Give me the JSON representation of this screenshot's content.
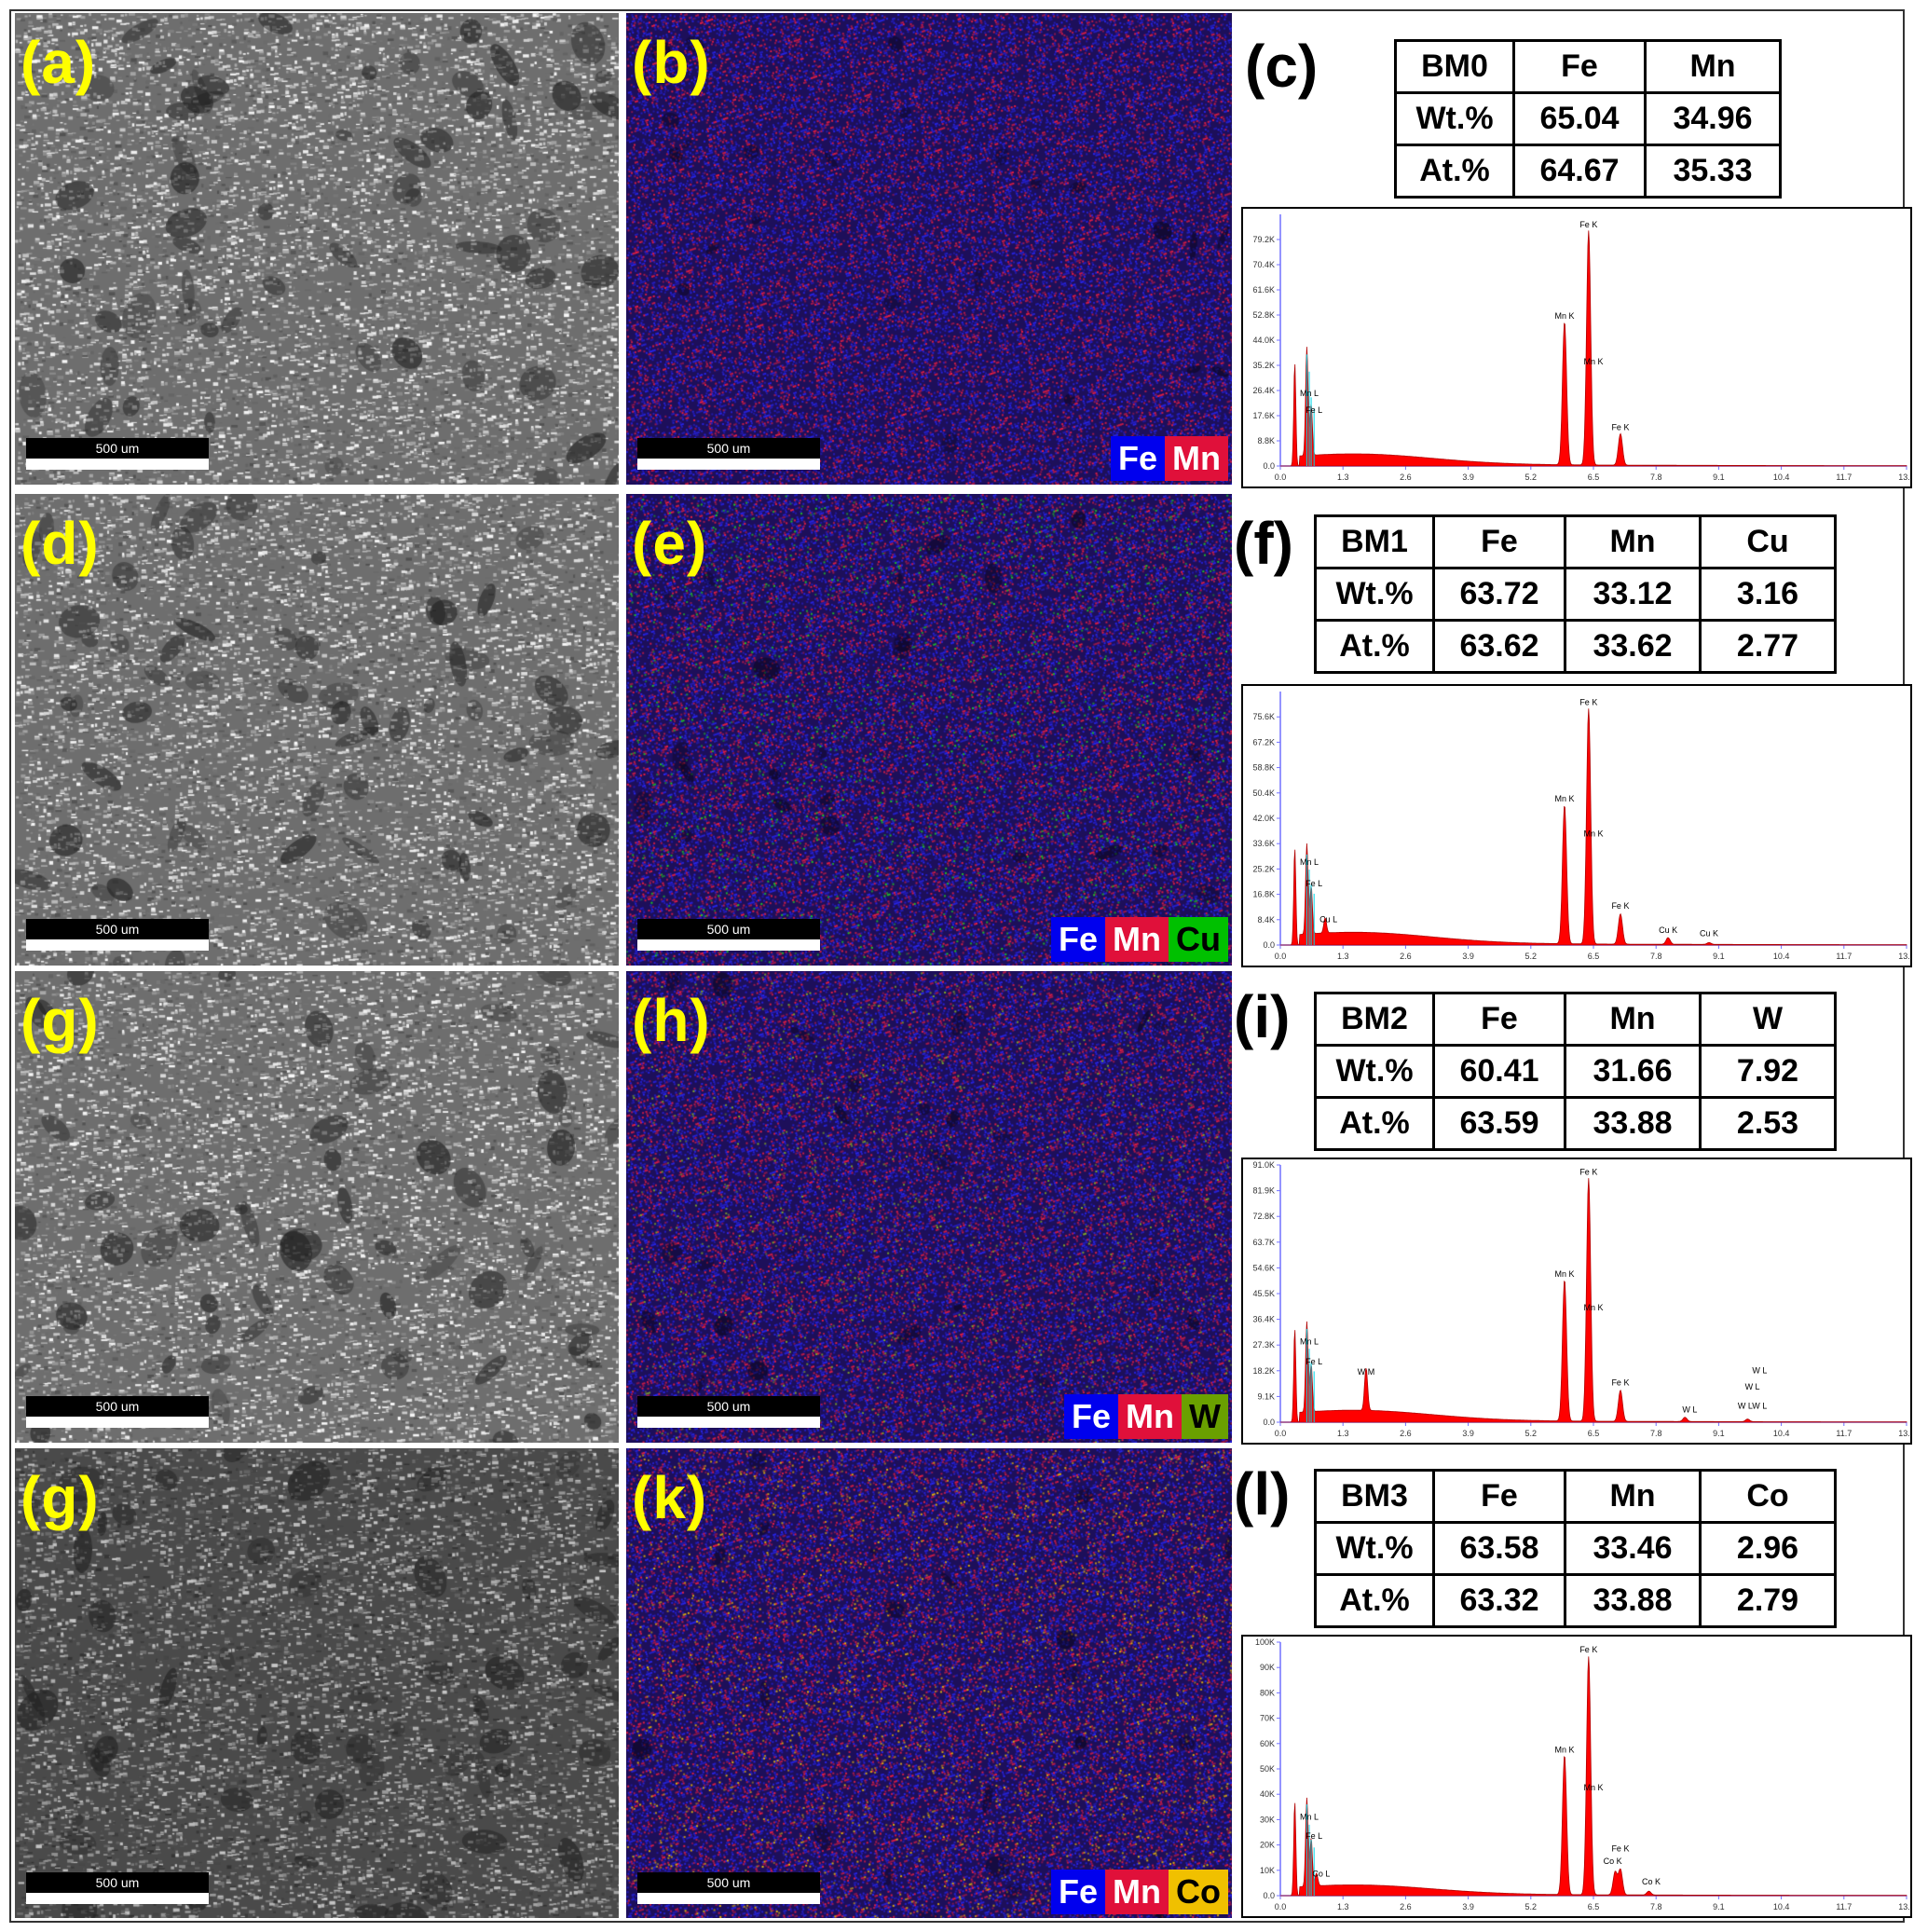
{
  "scale_bar": "500 um",
  "colors": {
    "Fe": "#0000ee",
    "Mn": "#e0103a",
    "Cu": "#00c000",
    "W": "#6aa000",
    "Co": "#f0c000",
    "label": "#ffff00",
    "peak": "#ff0000",
    "cyan": "#00d8e8"
  },
  "panels": [
    {
      "sem_label": "(a)",
      "map_label": "(b)",
      "chart_label": "(c)",
      "legend": [
        {
          "el": "Fe",
          "color": "#0000ee",
          "text": "#ffffff"
        },
        {
          "el": "Mn",
          "color": "#e0103a",
          "text": "#ffffff"
        }
      ],
      "table": {
        "header": [
          "BM0",
          "Fe",
          "Mn"
        ],
        "rows": [
          [
            "Wt.%",
            "65.04",
            "34.96"
          ],
          [
            "At.%",
            "64.67",
            "35.33"
          ]
        ]
      },
      "chart_data": {
        "type": "line",
        "xlim": [
          0,
          13.0
        ],
        "xticks": [
          "0.0",
          "1.3",
          "2.6",
          "3.9",
          "5.2",
          "6.5",
          "7.8",
          "9.1",
          "10.4",
          "11.7",
          "13.0"
        ],
        "ylim": [
          0,
          88000
        ],
        "yticks": [
          "0.0",
          "8.8K",
          "17.6K",
          "26.4K",
          "35.2K",
          "44.0K",
          "52.8K",
          "61.6K",
          "70.4K",
          "79.2K"
        ],
        "ytick_values": [
          0,
          8800,
          17600,
          26400,
          35200,
          44000,
          52800,
          61600,
          70400,
          79200
        ],
        "peaks": [
          {
            "x": 0.3,
            "y": 36000,
            "w": 0.03
          },
          {
            "x": 0.55,
            "y": 38000,
            "w": 0.035
          },
          {
            "x": 0.64,
            "y": 18000,
            "w": 0.035
          },
          {
            "x": 5.9,
            "y": 50000,
            "w": 0.06
          },
          {
            "x": 6.4,
            "y": 82000,
            "w": 0.06
          },
          {
            "x": 7.06,
            "y": 11000,
            "w": 0.06
          }
        ],
        "cyan_lines": [
          {
            "x": 0.55,
            "y": 39000
          },
          {
            "x": 0.6,
            "y": 33000
          },
          {
            "x": 0.64,
            "y": 24000
          },
          {
            "x": 0.7,
            "y": 20000
          }
        ],
        "annotations": [
          {
            "text": "Fe K",
            "x": 6.4,
            "y": 83500
          },
          {
            "text": "Mn K",
            "x": 5.9,
            "y": 51500
          },
          {
            "text": "Mn K",
            "x": 6.5,
            "y": 35500
          },
          {
            "text": "Fe K",
            "x": 7.06,
            "y": 12500
          },
          {
            "text": "Mn L",
            "x": 0.6,
            "y": 24500
          },
          {
            "text": "Fe L",
            "x": 0.7,
            "y": 18500
          }
        ]
      }
    },
    {
      "sem_label": "(d)",
      "map_label": "(e)",
      "chart_label": "(f)",
      "legend": [
        {
          "el": "Fe",
          "color": "#0000ee",
          "text": "#ffffff"
        },
        {
          "el": "Mn",
          "color": "#e0103a",
          "text": "#ffffff"
        },
        {
          "el": "Cu",
          "color": "#00c000",
          "text": "#000000"
        }
      ],
      "table": {
        "header": [
          "BM1",
          "Fe",
          "Mn",
          "Cu"
        ],
        "rows": [
          [
            "Wt.%",
            "63.72",
            "33.12",
            "3.16"
          ],
          [
            "At.%",
            "63.62",
            "33.62",
            "2.77"
          ]
        ]
      },
      "chart_data": {
        "type": "line",
        "xlim": [
          0,
          13.0
        ],
        "xticks": [
          "0.0",
          "1.3",
          "2.6",
          "3.9",
          "5.2",
          "6.5",
          "7.8",
          "9.1",
          "10.4",
          "11.7",
          "13.0"
        ],
        "ylim": [
          0,
          84000
        ],
        "yticks": [
          "0.0",
          "8.4K",
          "16.8K",
          "25.2K",
          "33.6K",
          "42.0K",
          "50.4K",
          "58.8K",
          "67.2K",
          "75.6K"
        ],
        "ytick_values": [
          0,
          8400,
          16800,
          25200,
          33600,
          42000,
          50400,
          58800,
          67200,
          75600
        ],
        "peaks": [
          {
            "x": 0.3,
            "y": 32000,
            "w": 0.03
          },
          {
            "x": 0.55,
            "y": 30000,
            "w": 0.035
          },
          {
            "x": 0.64,
            "y": 16000,
            "w": 0.035
          },
          {
            "x": 0.93,
            "y": 5000,
            "w": 0.04
          },
          {
            "x": 5.9,
            "y": 46000,
            "w": 0.06
          },
          {
            "x": 6.4,
            "y": 78000,
            "w": 0.06
          },
          {
            "x": 7.06,
            "y": 10000,
            "w": 0.06
          },
          {
            "x": 8.05,
            "y": 2200,
            "w": 0.06
          },
          {
            "x": 8.9,
            "y": 600,
            "w": 0.06
          }
        ],
        "cyan_lines": [
          {
            "x": 0.55,
            "y": 30000
          },
          {
            "x": 0.6,
            "y": 25000
          },
          {
            "x": 0.64,
            "y": 20000
          },
          {
            "x": 0.7,
            "y": 17000
          }
        ],
        "annotations": [
          {
            "text": "Fe K",
            "x": 6.4,
            "y": 79500
          },
          {
            "text": "Mn K",
            "x": 5.9,
            "y": 47500
          },
          {
            "text": "Mn K",
            "x": 6.5,
            "y": 36000
          },
          {
            "text": "Fe K",
            "x": 7.06,
            "y": 12000
          },
          {
            "text": "Mn L",
            "x": 0.6,
            "y": 26500
          },
          {
            "text": "Fe L",
            "x": 0.7,
            "y": 19500
          },
          {
            "text": "Cu L",
            "x": 1.0,
            "y": 7500
          },
          {
            "text": "Cu K",
            "x": 8.05,
            "y": 4000
          },
          {
            "text": "Cu K",
            "x": 8.9,
            "y": 3000
          }
        ]
      }
    },
    {
      "sem_label": "(g)",
      "map_label": "(h)",
      "chart_label": "(i)",
      "legend": [
        {
          "el": "Fe",
          "color": "#0000ee",
          "text": "#ffffff"
        },
        {
          "el": "Mn",
          "color": "#e0103a",
          "text": "#ffffff"
        },
        {
          "el": "W",
          "color": "#6aa000",
          "text": "#000000"
        }
      ],
      "table": {
        "header": [
          "BM2",
          "Fe",
          "Mn",
          "W"
        ],
        "rows": [
          [
            "Wt.%",
            "60.41",
            "31.66",
            "7.92"
          ],
          [
            "At.%",
            "63.59",
            "33.88",
            "2.53"
          ]
        ]
      },
      "chart_data": {
        "type": "line",
        "xlim": [
          0,
          13.0
        ],
        "xticks": [
          "0.0",
          "1.3",
          "2.6",
          "3.9",
          "5.2",
          "6.5",
          "7.8",
          "9.1",
          "10.4",
          "11.7",
          "13.0"
        ],
        "ylim": [
          0,
          91000
        ],
        "yticks": [
          "0.0",
          "9.1K",
          "18.2K",
          "27.3K",
          "36.4K",
          "45.5K",
          "54.6K",
          "63.7K",
          "72.8K",
          "81.9K",
          "91.0K"
        ],
        "ytick_values": [
          0,
          9100,
          18200,
          27300,
          36400,
          45500,
          54600,
          63700,
          72800,
          81900,
          91000
        ],
        "peaks": [
          {
            "x": 0.3,
            "y": 33000,
            "w": 0.03
          },
          {
            "x": 0.55,
            "y": 32000,
            "w": 0.035
          },
          {
            "x": 0.64,
            "y": 17000,
            "w": 0.035
          },
          {
            "x": 1.78,
            "y": 15000,
            "w": 0.045
          },
          {
            "x": 5.9,
            "y": 50000,
            "w": 0.06
          },
          {
            "x": 6.4,
            "y": 86000,
            "w": 0.06
          },
          {
            "x": 7.06,
            "y": 11000,
            "w": 0.06
          },
          {
            "x": 8.4,
            "y": 1500,
            "w": 0.06
          },
          {
            "x": 9.7,
            "y": 900,
            "w": 0.06
          }
        ],
        "cyan_lines": [
          {
            "x": 0.55,
            "y": 33000
          },
          {
            "x": 0.6,
            "y": 26000
          },
          {
            "x": 0.64,
            "y": 21000
          },
          {
            "x": 0.7,
            "y": 18000
          }
        ],
        "annotations": [
          {
            "text": "Fe K",
            "x": 6.4,
            "y": 87500
          },
          {
            "text": "Mn K",
            "x": 5.9,
            "y": 51500
          },
          {
            "text": "Mn K",
            "x": 6.5,
            "y": 39500
          },
          {
            "text": "Fe K",
            "x": 7.06,
            "y": 13000
          },
          {
            "text": "Mn L",
            "x": 0.6,
            "y": 27500
          },
          {
            "text": "Fe L",
            "x": 0.7,
            "y": 20500
          },
          {
            "text": "W M",
            "x": 1.78,
            "y": 16800
          },
          {
            "text": "W L",
            "x": 8.5,
            "y": 3500
          },
          {
            "text": "W L",
            "x": 9.95,
            "y": 17300
          },
          {
            "text": "W L",
            "x": 9.8,
            "y": 11500
          },
          {
            "text": "W LW L",
            "x": 9.8,
            "y": 4800
          }
        ]
      }
    },
    {
      "sem_label": "(g)",
      "map_label": "(k)",
      "chart_label": "(l)",
      "legend": [
        {
          "el": "Fe",
          "color": "#0000ee",
          "text": "#ffffff"
        },
        {
          "el": "Mn",
          "color": "#e0103a",
          "text": "#ffffff"
        },
        {
          "el": "Co",
          "color": "#f0c000",
          "text": "#000000"
        }
      ],
      "table": {
        "header": [
          "BM3",
          "Fe",
          "Mn",
          "Co"
        ],
        "rows": [
          [
            "Wt.%",
            "63.58",
            "33.46",
            "2.96"
          ],
          [
            "At.%",
            "63.32",
            "33.88",
            "2.79"
          ]
        ]
      },
      "chart_data": {
        "type": "line",
        "xlim": [
          0,
          13.0
        ],
        "xticks": [
          "0.0",
          "1.3",
          "2.6",
          "3.9",
          "5.2",
          "6.5",
          "7.8",
          "9.1",
          "10.4",
          "11.7",
          "13.0"
        ],
        "ylim": [
          0,
          100000
        ],
        "yticks": [
          "0.0",
          "10K",
          "20K",
          "30K",
          "40K",
          "50K",
          "60K",
          "70K",
          "80K",
          "90K",
          "100K"
        ],
        "ytick_values": [
          0,
          10000,
          20000,
          30000,
          40000,
          50000,
          60000,
          70000,
          80000,
          90000,
          100000
        ],
        "peaks": [
          {
            "x": 0.3,
            "y": 37000,
            "w": 0.03
          },
          {
            "x": 0.55,
            "y": 35000,
            "w": 0.035
          },
          {
            "x": 0.64,
            "y": 19000,
            "w": 0.035
          },
          {
            "x": 0.75,
            "y": 5000,
            "w": 0.04
          },
          {
            "x": 5.9,
            "y": 55000,
            "w": 0.06
          },
          {
            "x": 6.4,
            "y": 94000,
            "w": 0.06
          },
          {
            "x": 6.95,
            "y": 9000,
            "w": 0.06
          },
          {
            "x": 7.06,
            "y": 10000,
            "w": 0.06
          },
          {
            "x": 7.65,
            "y": 1500,
            "w": 0.06
          }
        ],
        "cyan_lines": [
          {
            "x": 0.55,
            "y": 36000
          },
          {
            "x": 0.6,
            "y": 28000
          },
          {
            "x": 0.64,
            "y": 22000
          },
          {
            "x": 0.7,
            "y": 19000
          }
        ],
        "annotations": [
          {
            "text": "Fe K",
            "x": 6.4,
            "y": 96000
          },
          {
            "text": "Mn K",
            "x": 5.9,
            "y": 56500
          },
          {
            "text": "Mn K",
            "x": 6.5,
            "y": 41500
          },
          {
            "text": "Fe K",
            "x": 7.06,
            "y": 17500
          },
          {
            "text": "Co K",
            "x": 6.9,
            "y": 12500
          },
          {
            "text": "Co K",
            "x": 7.7,
            "y": 4500
          },
          {
            "text": "Mn L",
            "x": 0.6,
            "y": 30000
          },
          {
            "text": "Fe L",
            "x": 0.7,
            "y": 22500
          },
          {
            "text": "Co L",
            "x": 0.85,
            "y": 7500
          }
        ]
      }
    }
  ]
}
